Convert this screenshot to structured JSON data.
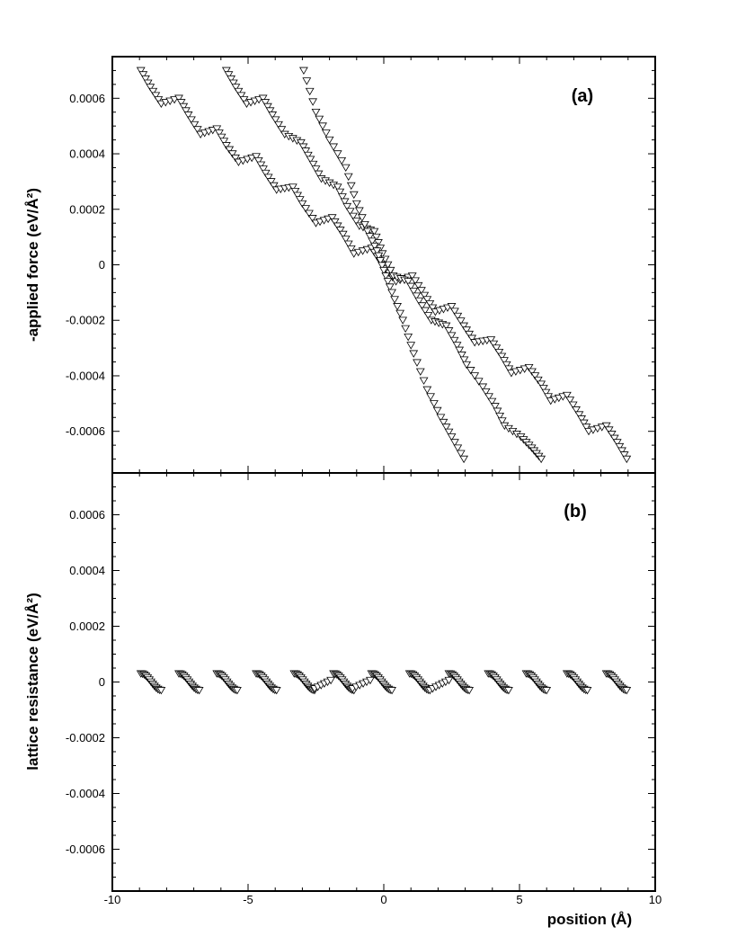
{
  "chart_data": [
    {
      "type": "scatter",
      "panel_label": "(a)",
      "ylabel": "-applied force (eV/Å²)",
      "xlabel": "",
      "xlim": [
        -10,
        10
      ],
      "ylim": [
        -0.00075,
        0.00075
      ],
      "x_ticks": [
        -10,
        -5,
        0,
        5,
        10
      ],
      "y_ticks": [
        -0.0006,
        -0.0004,
        -0.0002,
        0,
        0.0002,
        0.0004,
        0.0006
      ],
      "y_tick_labels": [
        "-0.0006",
        "-0.0004",
        "-0.0002",
        "0",
        "0.0002",
        "0.0004",
        "0.0006"
      ],
      "marker": "triangle-down",
      "series": [
        {
          "values": [
            [
              -8.95,
              0.0007
            ],
            [
              -8.6,
              0.00064
            ],
            [
              -8.2,
              0.00058
            ],
            [
              -7.55,
              0.0006
            ],
            [
              -7.2,
              0.00054
            ],
            [
              -6.75,
              0.00047
            ],
            [
              -6.15,
              0.00049
            ],
            [
              -5.8,
              0.00043
            ],
            [
              -5.35,
              0.00037
            ],
            [
              -4.7,
              0.00039
            ],
            [
              -4.35,
              0.00033
            ],
            [
              -3.95,
              0.00027
            ],
            [
              -3.35,
              0.00028
            ],
            [
              -3.0,
              0.00022
            ],
            [
              -2.5,
              0.00015
            ],
            [
              -1.9,
              0.00017
            ],
            [
              -1.5,
              0.00011
            ],
            [
              -1.1,
              4e-05
            ],
            [
              -0.45,
              6e-05
            ],
            [
              -0.05,
              0.0
            ],
            [
              0.45,
              -6e-05
            ],
            [
              1.05,
              -4e-05
            ],
            [
              1.5,
              -0.00011
            ],
            [
              1.9,
              -0.00017
            ],
            [
              2.5,
              -0.00015
            ],
            [
              2.95,
              -0.00022
            ],
            [
              3.35,
              -0.00028
            ],
            [
              3.95,
              -0.00027
            ],
            [
              4.35,
              -0.00033
            ],
            [
              4.7,
              -0.00039
            ],
            [
              5.35,
              -0.00037
            ],
            [
              5.8,
              -0.00043
            ],
            [
              6.15,
              -0.00049
            ],
            [
              6.75,
              -0.00047
            ],
            [
              7.2,
              -0.00054
            ],
            [
              7.55,
              -0.0006
            ],
            [
              8.2,
              -0.00058
            ],
            [
              8.6,
              -0.00064
            ],
            [
              8.95,
              -0.0007
            ]
          ]
        },
        {
          "values": [
            [
              -5.8,
              0.0007
            ],
            [
              -5.45,
              0.00064
            ],
            [
              -5.05,
              0.00058
            ],
            [
              -4.45,
              0.0006
            ],
            [
              -4.1,
              0.00054
            ],
            [
              -3.65,
              0.00047
            ],
            [
              -3.05,
              0.00044
            ],
            [
              -2.7,
              0.00038
            ],
            [
              -2.3,
              0.00031
            ],
            [
              -1.7,
              0.00028
            ],
            [
              -1.35,
              0.00021
            ],
            [
              -0.9,
              0.00014
            ],
            [
              -0.35,
              0.00012
            ],
            [
              -0.05,
              4e-05
            ],
            [
              0.35,
              -4e-05
            ],
            [
              0.9,
              -6e-05
            ],
            [
              1.3,
              -0.00013
            ],
            [
              1.75,
              -0.0002
            ],
            [
              2.3,
              -0.00022
            ],
            [
              2.7,
              -0.00029
            ],
            [
              3.05,
              -0.00036
            ],
            [
              3.65,
              -0.00044
            ],
            [
              4.1,
              -0.00051
            ],
            [
              4.45,
              -0.00058
            ],
            [
              5.05,
              -0.00062
            ],
            [
              5.45,
              -0.00066
            ],
            [
              5.8,
              -0.0007
            ]
          ]
        },
        {
          "values": [
            [
              -2.95,
              0.0007
            ],
            [
              -2.5,
              0.00055
            ],
            [
              -2.0,
              0.00045
            ],
            [
              -1.4,
              0.00035
            ],
            [
              -1.0,
              0.00022
            ],
            [
              -0.6,
              0.00012
            ],
            [
              -0.25,
              5e-05
            ],
            [
              0.0,
              -2e-05
            ],
            [
              0.3,
              -0.0001
            ],
            [
              0.7,
              -0.0002
            ],
            [
              1.1,
              -0.00032
            ],
            [
              1.6,
              -0.00045
            ],
            [
              2.1,
              -0.00055
            ],
            [
              2.5,
              -0.00062
            ],
            [
              2.95,
              -0.0007
            ]
          ]
        }
      ]
    },
    {
      "type": "scatter",
      "panel_label": "(b)",
      "ylabel": "lattice resistance (eV/Å²)",
      "xlabel": "position (Å)",
      "xlim": [
        -10,
        10
      ],
      "ylim": [
        -0.00075,
        0.00075
      ],
      "x_ticks": [
        -10,
        -5,
        0,
        5,
        10
      ],
      "x_tick_labels": [
        "-10",
        "-5",
        "0",
        "5",
        "10"
      ],
      "y_ticks": [
        -0.0006,
        -0.0004,
        -0.0002,
        0,
        0.0002,
        0.0004,
        0.0006
      ],
      "y_tick_labels": [
        "-0.0006",
        "-0.0004",
        "-0.0002",
        "0",
        "0.0002",
        "0.0004",
        "0.0006"
      ],
      "marker": "triangle-down",
      "segment_starts": [
        -8.95,
        -7.55,
        -6.15,
        -4.7,
        -3.3,
        -1.85,
        -0.45,
        0.95,
        2.4,
        3.85,
        5.25,
        6.75,
        8.2
      ],
      "segment_width": 0.75,
      "amplitude": 3e-05,
      "rising_gaps": [
        [
          -2.55,
          -1.95
        ],
        [
          -1.15,
          -0.5
        ],
        [
          1.8,
          2.4
        ]
      ]
    }
  ]
}
